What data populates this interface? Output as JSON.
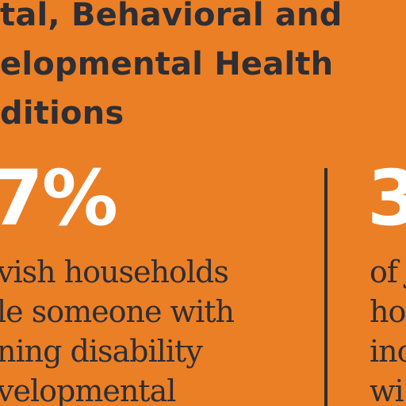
{
  "heading": {
    "lines": [
      "tal, Behavioral and",
      "elopmental Health",
      "ditions"
    ]
  },
  "stats": {
    "left": {
      "number": "7%",
      "description_lines": [
        "vish households",
        "le someone with",
        "ning disability",
        "velopmental"
      ]
    },
    "right": {
      "number": "3",
      "description_lines": [
        "of J",
        "ho",
        "inc",
        "wi"
      ]
    }
  },
  "colors": {
    "background": "#EB7F25",
    "heading_text": "#2E2E34",
    "stat_number": "#FFFFFF",
    "body_text": "#2E2E34",
    "divider": "#2E2E34"
  }
}
